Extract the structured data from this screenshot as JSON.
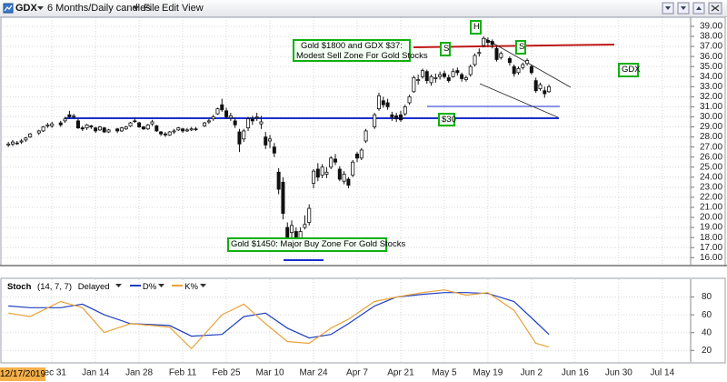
{
  "header": {
    "symbol": "GDX",
    "period": "6 Months/Daily candles",
    "menu": [
      "File",
      "Edit",
      "View"
    ]
  },
  "chart_data": [
    {
      "type": "candlestick",
      "symbol_label": "GDX",
      "x": [
        "Dec 17",
        "Dec 18",
        "Dec 19",
        "Dec 20",
        "Dec 23",
        "Dec 24",
        "Dec 26",
        "Dec 27",
        "Dec 30",
        "Dec 31",
        "Jan 2",
        "Jan 3",
        "Jan 6",
        "Jan 7",
        "Jan 8",
        "Jan 9",
        "Jan 10",
        "Jan 13",
        "Jan 14",
        "Jan 15",
        "Jan 16",
        "Jan 17",
        "Jan 21",
        "Jan 22",
        "Jan 23",
        "Jan 24",
        "Jan 27",
        "Jan 28",
        "Jan 29",
        "Jan 30",
        "Jan 31",
        "Feb 3",
        "Feb 4",
        "Feb 5",
        "Feb 6",
        "Feb 7",
        "Feb 10",
        "Feb 11",
        "Feb 12",
        "Feb 13",
        "Feb 14",
        "Feb 18",
        "Feb 19",
        "Feb 20",
        "Feb 21",
        "Feb 24",
        "Feb 25",
        "Feb 26",
        "Feb 27",
        "Feb 28",
        "Mar 2",
        "Mar 3",
        "Mar 4",
        "Mar 5",
        "Mar 6",
        "Mar 9",
        "Mar 10",
        "Mar 11",
        "Mar 12",
        "Mar 13",
        "Mar 16",
        "Mar 17",
        "Mar 18",
        "Mar 19",
        "Mar 20",
        "Mar 23",
        "Mar 24",
        "Mar 25",
        "Mar 26",
        "Mar 27",
        "Mar 30",
        "Mar 31",
        "Apr 1",
        "Apr 2",
        "Apr 3",
        "Apr 6",
        "Apr 7",
        "Apr 8",
        "Apr 9",
        "Apr 13",
        "Apr 14",
        "Apr 15",
        "Apr 16",
        "Apr 17",
        "Apr 20",
        "Apr 21",
        "Apr 22",
        "Apr 23",
        "Apr 24",
        "Apr 27",
        "Apr 28",
        "Apr 29",
        "Apr 30",
        "May 1",
        "May 4",
        "May 5",
        "May 6",
        "May 7",
        "May 8",
        "May 11",
        "May 12",
        "May 13",
        "May 14",
        "May 15",
        "May 18",
        "May 19",
        "May 20",
        "May 21",
        "May 22",
        "May 26",
        "May 27",
        "May 28",
        "May 29",
        "Jun 1",
        "Jun 2",
        "Jun 3",
        "Jun 4",
        "Jun 5",
        "Jun 8"
      ],
      "ohlc": [
        [
          27.2,
          27.5,
          27.0,
          27.3
        ],
        [
          27.3,
          27.7,
          27.1,
          27.5
        ],
        [
          27.4,
          27.6,
          27.2,
          27.4
        ],
        [
          27.5,
          27.8,
          27.3,
          27.6
        ],
        [
          27.7,
          28.0,
          27.5,
          27.9
        ],
        [
          28.0,
          28.4,
          27.9,
          28.3
        ],
        [
          28.4,
          28.7,
          28.2,
          28.6
        ],
        [
          28.6,
          29.1,
          28.5,
          29.0
        ],
        [
          29.1,
          29.4,
          28.9,
          29.2
        ],
        [
          29.1,
          29.5,
          28.9,
          29.3
        ],
        [
          29.4,
          29.6,
          29.0,
          29.2
        ],
        [
          29.6,
          30.0,
          29.4,
          29.8
        ],
        [
          30.2,
          30.6,
          29.8,
          30.0
        ],
        [
          30.0,
          30.3,
          29.8,
          30.1
        ],
        [
          29.6,
          29.8,
          28.8,
          28.9
        ],
        [
          28.9,
          29.1,
          28.6,
          28.8
        ],
        [
          28.9,
          29.3,
          28.7,
          29.2
        ],
        [
          29.1,
          29.2,
          28.8,
          29.0
        ],
        [
          28.9,
          29.0,
          28.4,
          28.6
        ],
        [
          28.7,
          29.1,
          28.6,
          29.0
        ],
        [
          28.9,
          29.0,
          28.4,
          28.5
        ],
        [
          28.5,
          28.8,
          28.4,
          28.7
        ],
        [
          28.8,
          28.9,
          28.4,
          28.6
        ],
        [
          28.6,
          29.0,
          28.5,
          28.9
        ],
        [
          28.8,
          29.1,
          28.7,
          29.0
        ],
        [
          29.1,
          29.5,
          29.0,
          29.4
        ],
        [
          29.6,
          29.9,
          29.4,
          29.6
        ],
        [
          29.4,
          29.5,
          28.9,
          29.0
        ],
        [
          29.0,
          29.1,
          28.7,
          28.8
        ],
        [
          28.8,
          29.3,
          28.7,
          29.2
        ],
        [
          29.3,
          29.7,
          29.1,
          29.5
        ],
        [
          29.1,
          29.2,
          28.5,
          28.6
        ],
        [
          28.5,
          28.6,
          28.1,
          28.3
        ],
        [
          28.3,
          28.5,
          28.0,
          28.2
        ],
        [
          28.2,
          28.6,
          28.1,
          28.5
        ],
        [
          28.5,
          28.8,
          28.3,
          28.6
        ],
        [
          28.7,
          29.0,
          28.6,
          28.9
        ],
        [
          28.8,
          28.9,
          28.4,
          28.6
        ],
        [
          28.6,
          28.9,
          28.5,
          28.7
        ],
        [
          28.7,
          29.0,
          28.6,
          28.8
        ],
        [
          28.8,
          29.0,
          28.6,
          28.8
        ],
        [
          29.1,
          29.5,
          29.0,
          29.4
        ],
        [
          29.5,
          29.8,
          29.3,
          29.6
        ],
        [
          29.8,
          30.2,
          29.6,
          30.0
        ],
        [
          30.3,
          30.9,
          30.2,
          30.8
        ],
        [
          31.2,
          31.8,
          30.5,
          30.7
        ],
        [
          30.6,
          30.9,
          29.8,
          30.0
        ],
        [
          29.9,
          30.4,
          29.6,
          30.1
        ],
        [
          29.6,
          29.9,
          28.9,
          29.2
        ],
        [
          28.5,
          28.8,
          26.5,
          27.3
        ],
        [
          27.8,
          28.8,
          27.5,
          28.6
        ],
        [
          28.9,
          30.0,
          28.6,
          29.8
        ],
        [
          29.8,
          30.1,
          29.2,
          29.6
        ],
        [
          29.9,
          30.4,
          29.6,
          30.0
        ],
        [
          29.3,
          30.1,
          28.8,
          29.5
        ],
        [
          28.0,
          28.5,
          26.8,
          27.2
        ],
        [
          27.6,
          28.2,
          26.9,
          27.8
        ],
        [
          27.0,
          27.4,
          26.0,
          26.4
        ],
        [
          24.5,
          24.9,
          22.3,
          22.8
        ],
        [
          23.5,
          24.0,
          19.8,
          20.4
        ],
        [
          19.0,
          19.5,
          16.7,
          18.0
        ],
        [
          18.5,
          19.7,
          17.6,
          19.2
        ],
        [
          18.6,
          19.0,
          17.1,
          17.5
        ],
        [
          17.6,
          19.0,
          17.2,
          18.6
        ],
        [
          19.0,
          20.2,
          18.8,
          19.3
        ],
        [
          19.5,
          21.3,
          19.2,
          20.9
        ],
        [
          23.4,
          24.8,
          22.9,
          24.6
        ],
        [
          24.8,
          25.4,
          23.6,
          24.0
        ],
        [
          24.2,
          25.3,
          23.9,
          25.0
        ],
        [
          24.3,
          25.0,
          23.9,
          24.5
        ],
        [
          25.0,
          26.1,
          24.8,
          25.9
        ],
        [
          25.8,
          26.3,
          25.2,
          25.5
        ],
        [
          24.8,
          25.1,
          23.6,
          23.8
        ],
        [
          23.6,
          24.6,
          23.3,
          24.3
        ],
        [
          23.8,
          24.0,
          22.9,
          23.2
        ],
        [
          24.2,
          25.7,
          24.0,
          25.5
        ],
        [
          26.3,
          26.5,
          25.5,
          25.9
        ],
        [
          25.9,
          26.9,
          25.7,
          26.7
        ],
        [
          27.6,
          28.8,
          27.4,
          28.6
        ],
        [
          29.0,
          30.4,
          28.8,
          30.2
        ],
        [
          30.8,
          32.4,
          30.6,
          32.1
        ],
        [
          31.6,
          32.0,
          30.9,
          31.2
        ],
        [
          31.4,
          31.8,
          30.7,
          31.0
        ],
        [
          30.2,
          30.5,
          29.6,
          30.0
        ],
        [
          30.1,
          30.4,
          29.5,
          29.8
        ],
        [
          30.2,
          30.6,
          29.5,
          29.7
        ],
        [
          30.3,
          31.2,
          30.1,
          31.0
        ],
        [
          31.4,
          32.2,
          31.2,
          32.0
        ],
        [
          32.5,
          34.1,
          32.4,
          33.9
        ],
        [
          33.6,
          34.2,
          33.2,
          33.7
        ],
        [
          34.0,
          34.8,
          33.8,
          34.6
        ],
        [
          34.5,
          34.7,
          33.3,
          33.6
        ],
        [
          33.4,
          34.2,
          33.1,
          34.0
        ],
        [
          33.8,
          34.3,
          33.4,
          33.9
        ],
        [
          34.0,
          34.5,
          33.7,
          34.2
        ],
        [
          34.3,
          34.6,
          33.8,
          34.0
        ],
        [
          33.9,
          34.2,
          33.4,
          33.6
        ],
        [
          34.0,
          34.8,
          33.9,
          34.5
        ],
        [
          34.6,
          34.9,
          34.1,
          34.4
        ],
        [
          34.2,
          34.4,
          33.5,
          33.8
        ],
        [
          33.7,
          34.1,
          33.5,
          33.9
        ],
        [
          34.2,
          35.2,
          34.0,
          35.0
        ],
        [
          35.2,
          36.3,
          35.0,
          36.1
        ],
        [
          36.3,
          36.8,
          36.0,
          36.4
        ],
        [
          37.1,
          38.0,
          36.9,
          37.8
        ],
        [
          37.6,
          37.9,
          37.0,
          37.4
        ],
        [
          37.5,
          37.7,
          36.8,
          37.2
        ],
        [
          36.8,
          37.0,
          35.5,
          35.7
        ],
        [
          35.9,
          36.5,
          35.7,
          36.3
        ],
        [
          35.8,
          36.0,
          35.1,
          35.4
        ],
        [
          35.0,
          35.2,
          34.0,
          34.3
        ],
        [
          34.4,
          35.0,
          34.2,
          34.8
        ],
        [
          34.9,
          35.4,
          34.7,
          35.2
        ],
        [
          35.3,
          35.8,
          35.1,
          35.6
        ],
        [
          35.0,
          35.2,
          34.2,
          34.4
        ],
        [
          33.6,
          33.9,
          32.4,
          32.6
        ],
        [
          32.8,
          33.4,
          32.6,
          33.2
        ],
        [
          32.6,
          33.0,
          31.9,
          32.3
        ],
        [
          32.5,
          33.2,
          32.4,
          33.0
        ]
      ],
      "xlim": [
        "Dec 16",
        "Jul 23"
      ],
      "ylim": [
        15.3,
        39.9
      ],
      "yticks": [
        {
          "value": 16,
          "label": "16.00"
        },
        {
          "value": 17,
          "label": "17.00"
        },
        {
          "value": 18,
          "label": "18.00"
        },
        {
          "value": 19,
          "label": "19.00"
        },
        {
          "value": 20,
          "label": "20.00"
        },
        {
          "value": 21,
          "label": "21.00"
        },
        {
          "value": 22,
          "label": "22.00"
        },
        {
          "value": 23,
          "label": "23.00"
        },
        {
          "value": 24,
          "label": "24.00"
        },
        {
          "value": 25,
          "label": "25.00"
        },
        {
          "value": 26,
          "label": "26.00"
        },
        {
          "value": 27,
          "label": "27.00"
        },
        {
          "value": 28,
          "label": "28.00"
        },
        {
          "value": 29,
          "label": "29.00"
        },
        {
          "value": 30,
          "label": "30.00"
        },
        {
          "value": 31,
          "label": "31.00"
        },
        {
          "value": 32,
          "label": "32.00"
        },
        {
          "value": 33,
          "label": "33.00"
        },
        {
          "value": 34,
          "label": "34.00"
        },
        {
          "value": 35,
          "label": "35.00"
        },
        {
          "value": 36,
          "label": "36.00"
        },
        {
          "value": 37,
          "label": "37.00"
        },
        {
          "value": 38,
          "label": "38.00"
        },
        {
          "value": 39,
          "label": "39.00"
        }
      ],
      "grid": true,
      "annotations": [
        {
          "lines": [
            "Gold $1800 and GDX $37:",
            "Modest Sell Zone For Gold Stocks"
          ]
        },
        {
          "lines": [
            "H"
          ]
        },
        {
          "lines": [
            "S"
          ]
        },
        {
          "lines": [
            "S"
          ]
        },
        {
          "lines": [
            "$30"
          ]
        },
        {
          "lines": [
            "Gold $1450: Major Buy Zone For Gold Stocks"
          ]
        }
      ]
    },
    {
      "type": "line",
      "title": "Stoch",
      "params": "(14, 7, 7)",
      "mode": "Delayed",
      "cursor_date": "12/17/2019",
      "x": [
        "Dec 17",
        "Dec 24",
        "Jan 2",
        "Jan 9",
        "Jan 16",
        "Jan 24",
        "Jan 31",
        "Feb 6",
        "Feb 13",
        "Feb 24",
        "Mar 2",
        "Mar 9",
        "Mar 16",
        "Mar 23",
        "Mar 30",
        "Apr 3",
        "Apr 13",
        "Apr 20",
        "Apr 28",
        "May 5",
        "May 12",
        "May 19",
        "May 27",
        "Jun 3",
        "Jun 8"
      ],
      "series": [
        {
          "name": "D%",
          "color": "#1f3fbf",
          "values": [
            70,
            68,
            68,
            72,
            60,
            50,
            49,
            48,
            36,
            38,
            58,
            62,
            45,
            34,
            38,
            50,
            70,
            80,
            83,
            85,
            85,
            84,
            75,
            52,
            38
          ]
        },
        {
          "name": "K%",
          "color": "#e8a33a",
          "values": [
            62,
            58,
            75,
            68,
            40,
            50,
            48,
            46,
            22,
            60,
            72,
            50,
            30,
            28,
            45,
            55,
            75,
            80,
            85,
            88,
            82,
            85,
            65,
            28,
            24
          ]
        }
      ],
      "xlim": [
        "Dec 16",
        "Jul 23"
      ],
      "xticks": [
        "Dec 31",
        "Jan 14",
        "Jan 28",
        "Feb 11",
        "Feb 25",
        "Mar 10",
        "Mar 24",
        "Apr 7",
        "Apr 21",
        "May 5",
        "May 19",
        "Jun 2",
        "Jun 16",
        "Jun 30",
        "Jul 14"
      ],
      "ylim": [
        7,
        100
      ],
      "yticks": [
        20,
        40,
        60,
        80
      ],
      "grid": true
    }
  ]
}
